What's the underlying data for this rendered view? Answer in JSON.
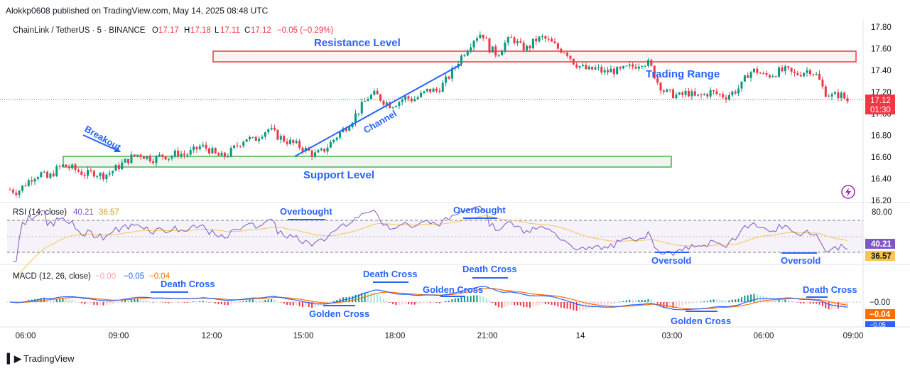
{
  "publish_line": "Alokkp0608 published on TradingView.com, May 14, 2025 08:48 UTC",
  "symbol_title": "ChainLink / TetherUS · 5 · BINANCE",
  "ohlc": {
    "o_label": "O",
    "o": "17.17",
    "h_label": "H",
    "h": "17.18",
    "l_label": "L",
    "l": "17.11",
    "c_label": "C",
    "c": "17.12",
    "change": "−0.05 (−0.29%)"
  },
  "price_axis_ticks": [
    "17.80",
    "17.60",
    "17.40",
    "17.20",
    "17.00",
    "16.80",
    "16.60",
    "16.40",
    "16.20"
  ],
  "last_price_badge": {
    "price": "17.12",
    "countdown": "01:30"
  },
  "time_axis_ticks": [
    "06:00",
    "09:00",
    "12:00",
    "15:00",
    "18:00",
    "21:00",
    "14",
    "03:00",
    "06:00",
    "09:00"
  ],
  "rsi": {
    "title": "RSI (14, close)",
    "value1": "40.21",
    "value2": "36.57",
    "axis_top": "80.00",
    "badge1": "40.21",
    "badge2": "36.57"
  },
  "macd": {
    "title": "MACD (12, 26, close)",
    "v1": "−0.00",
    "v2": "−0.05",
    "v3": "−0.04",
    "badge1": "−0.00",
    "badge2": "−0.04",
    "badge3": "−0.05"
  },
  "annotations": {
    "resistance": "Resistance Level",
    "support": "Support Level",
    "trading_range": "Trading Range",
    "channel": "Channel",
    "breakout": "Breakout",
    "rsi_overbought_1": "Overbought",
    "rsi_overbought_2": "Overbought",
    "rsi_oversold_1": "Oversold",
    "rsi_oversold_2": "Oversold",
    "macd_death_1": "Death Cross",
    "macd_death_2": "Death Cross",
    "macd_death_3": "Death Cross",
    "macd_death_4": "Death Cross",
    "macd_golden_1": "Golden Cross",
    "macd_golden_2": "Golden Cross",
    "macd_golden_3": "Golden Cross"
  },
  "footer_logo": "TradingView",
  "colors": {
    "up": "#089981",
    "down": "#f23645",
    "rsi_line": "#7e57c2",
    "rsi_ma": "#f7c652",
    "macd_line": "#2962ff",
    "signal_line": "#ff6d00",
    "annot": "#2962ff",
    "resistance": "#f23645",
    "support": "#4caf50"
  },
  "chart_data": {
    "type": "candlestick",
    "price_series": [
      16.3,
      16.28,
      16.35,
      16.42,
      16.45,
      16.4,
      16.48,
      16.52,
      16.5,
      16.47,
      16.44,
      16.46,
      16.43,
      16.45,
      16.5,
      16.55,
      16.6,
      16.63,
      16.6,
      16.58,
      16.62,
      16.6,
      16.64,
      16.62,
      16.65,
      16.7,
      16.68,
      16.62,
      16.6,
      16.65,
      16.72,
      16.78,
      16.75,
      16.82,
      16.86,
      16.8,
      16.76,
      16.73,
      16.7,
      16.66,
      16.62,
      16.65,
      16.72,
      16.8,
      16.87,
      16.95,
      17.05,
      17.15,
      17.18,
      17.12,
      17.08,
      17.11,
      17.15,
      17.13,
      17.17,
      17.22,
      17.21,
      17.28,
      17.38,
      17.5,
      17.6,
      17.7,
      17.75,
      17.6,
      17.55,
      17.65,
      17.7,
      17.62,
      17.6,
      17.68,
      17.7,
      17.66,
      17.6,
      17.58,
      17.48,
      17.43,
      17.4,
      17.42,
      17.38,
      17.4,
      17.39,
      17.42,
      17.44,
      17.48,
      17.46,
      17.3,
      17.2,
      17.18,
      17.16,
      17.2,
      17.15,
      17.17,
      17.2,
      17.18,
      17.16,
      17.2,
      17.25,
      17.38,
      17.4,
      17.35,
      17.36,
      17.39,
      17.4,
      17.36,
      17.38,
      17.41,
      17.35,
      17.2,
      17.16,
      17.18,
      17.12
    ]
  }
}
